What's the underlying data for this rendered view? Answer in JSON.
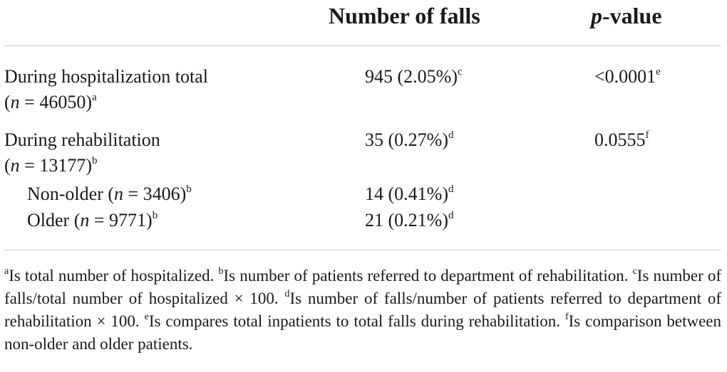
{
  "table": {
    "headers": {
      "falls_label": "Number of falls",
      "p_italic": "p",
      "p_rest": "-value"
    },
    "rows": [
      {
        "label_line1": "During hospitalization total",
        "label_line2": {
          "open": "(",
          "n": "n",
          "rest": " = 46050)",
          "sup": "a"
        },
        "falls": "945 (2.05%)",
        "falls_sup": "c",
        "p": "<0.0001",
        "p_sup": "e"
      },
      {
        "label_line1": "During rehabilitation",
        "label_line2": {
          "open": "(",
          "n": "n",
          "rest": " = 13177)",
          "sup": "b"
        },
        "falls": "35 (0.27%)",
        "falls_sup": "d",
        "p": "0.0555",
        "p_sup": "f"
      },
      {
        "label": {
          "pre": "Non-older (",
          "n": "n",
          "rest": " = 3406)",
          "sup": "b"
        },
        "falls": "14 (0.41%)",
        "falls_sup": "d"
      },
      {
        "label": {
          "pre": "Older (",
          "n": "n",
          "rest": " = 9771)",
          "sup": "b"
        },
        "falls": "21 (0.21%)",
        "falls_sup": "d"
      }
    ]
  },
  "footnotes": [
    {
      "mark": "a",
      "text": "Is total number of hospitalized. "
    },
    {
      "mark": "b",
      "text": "Is number of patients referred to department of rehabilitation. "
    },
    {
      "mark": "c",
      "text": "Is number of falls/total number of hospitalized × 100. "
    },
    {
      "mark": "d",
      "text": "Is number of falls/number of patients referred to department of rehabilitation × 100. "
    },
    {
      "mark": "e",
      "text": "Is compares total inpatients to total falls during rehabilitation. "
    },
    {
      "mark": "f",
      "text": "Is comparison between non-older and older patients."
    }
  ]
}
